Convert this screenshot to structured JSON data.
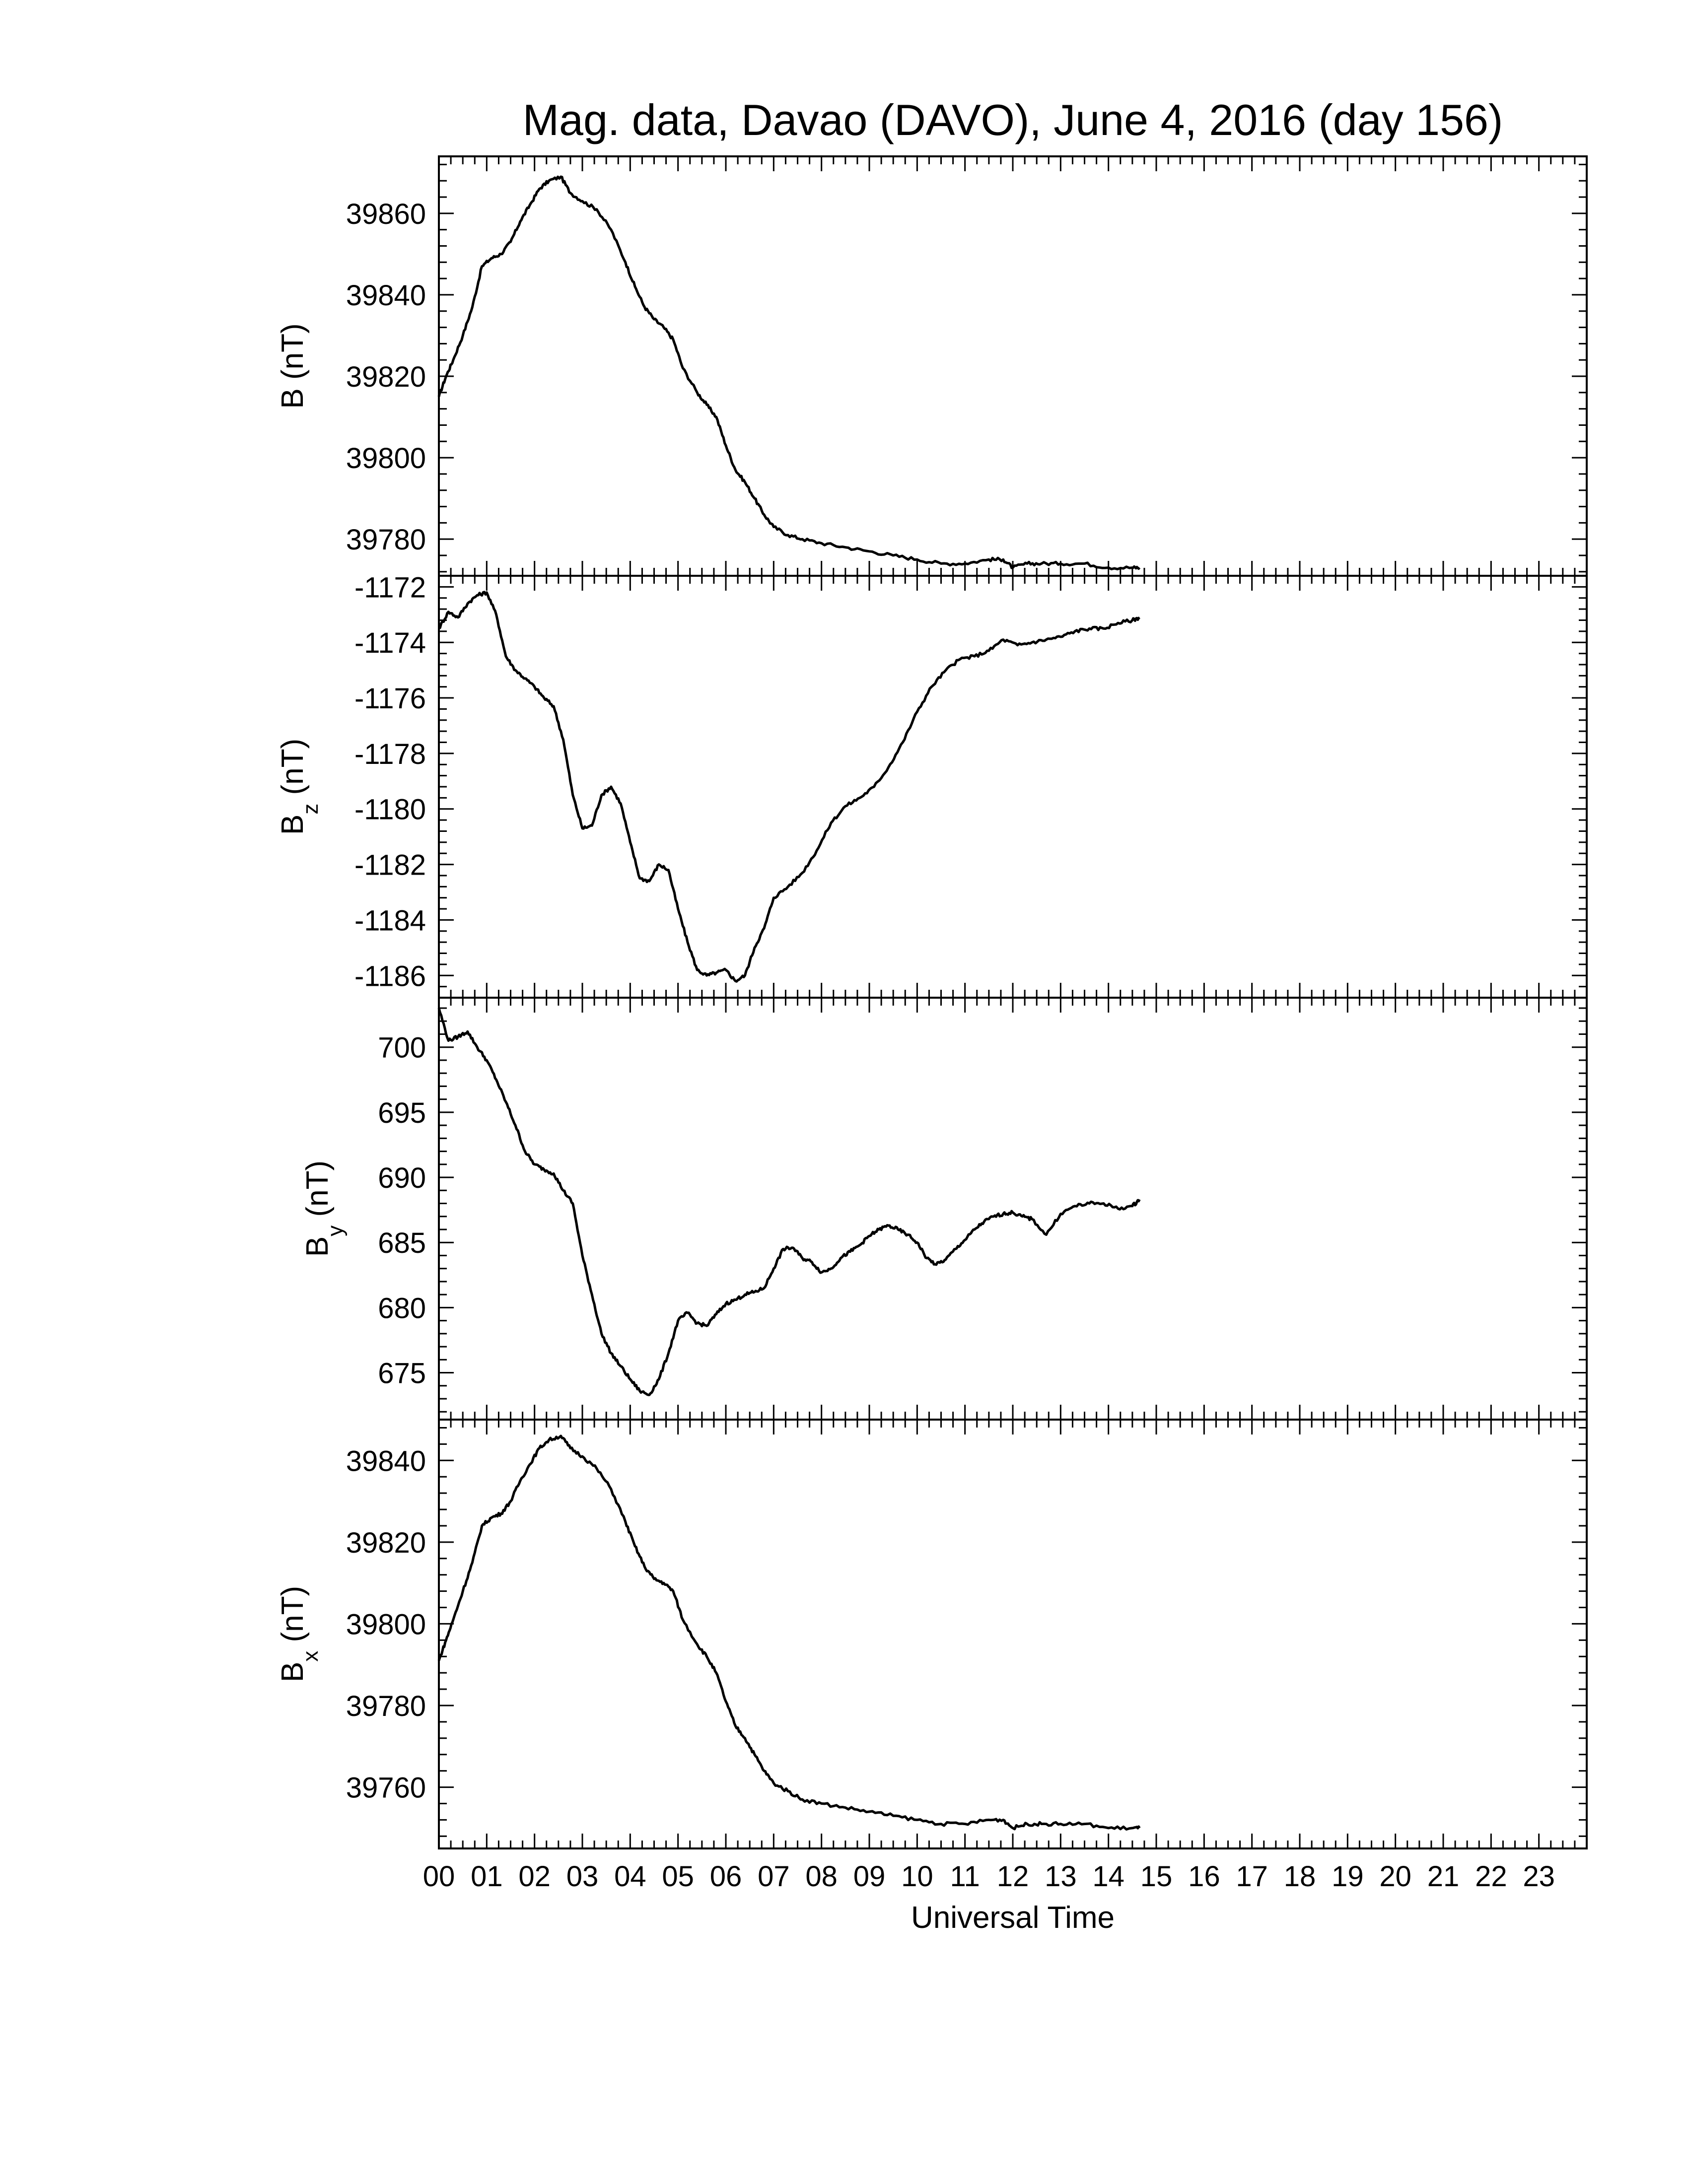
{
  "title": "Mag. data, Davao (DAVO), June 4, 2016 (day 156)",
  "xlabel": "Universal Time",
  "chart_data": [
    {
      "type": "line",
      "panel": "B",
      "ylabel": "B (nT)",
      "ylabel_parts": {
        "main": "B",
        "sub": "",
        "unit": "(nT)"
      },
      "xlim": [
        0,
        24
      ],
      "ylim": [
        39771,
        39874
      ],
      "yticks": [
        39780,
        39800,
        39820,
        39840,
        39860
      ],
      "x": [
        0.0,
        0.15,
        0.3,
        0.5,
        0.7,
        0.9,
        1.1,
        1.3,
        1.5,
        1.7,
        1.9,
        2.1,
        2.3,
        2.55,
        2.75,
        3.0,
        3.3,
        3.6,
        3.9,
        4.1,
        4.3,
        4.5,
        4.7,
        4.9,
        5.1,
        5.4,
        5.6,
        5.8,
        6.0,
        6.2,
        6.4,
        6.6,
        6.8,
        7.0,
        7.3,
        7.6,
        8.0,
        8.5,
        9.0,
        9.5,
        10.0,
        10.5,
        11.0,
        11.5,
        11.8,
        12.0,
        12.3,
        12.6,
        13.0,
        13.5,
        14.0,
        14.5,
        14.65
      ],
      "y": [
        39815,
        39820,
        39824,
        39830,
        39837,
        39847,
        39849,
        39850,
        39853,
        39858,
        39862,
        39866,
        39868,
        39869,
        39865,
        39863,
        39861,
        39856,
        39848,
        39842,
        39837,
        39834,
        39832,
        39829,
        39822,
        39816,
        39813,
        39810,
        39803,
        39797,
        39794,
        39790,
        39786,
        39783,
        39781,
        39780,
        39779,
        39778,
        39777,
        39776,
        39775,
        39774,
        39774,
        39775,
        39775,
        39773,
        39774,
        39774,
        39774,
        39774,
        39773,
        39773,
        39773
      ]
    },
    {
      "type": "line",
      "panel": "Bz",
      "ylabel": "Bz (nT)",
      "ylabel_parts": {
        "main": "B",
        "sub": "z",
        "unit": "(nT)"
      },
      "xlim": [
        0,
        24
      ],
      "ylim": [
        -1186.8,
        -1171.6
      ],
      "yticks": [
        -1186,
        -1184,
        -1182,
        -1180,
        -1178,
        -1176,
        -1174,
        -1172
      ],
      "x": [
        0.0,
        0.2,
        0.4,
        0.6,
        0.8,
        1.0,
        1.2,
        1.4,
        1.6,
        1.8,
        2.0,
        2.2,
        2.4,
        2.6,
        2.8,
        3.0,
        3.2,
        3.4,
        3.6,
        3.8,
        4.0,
        4.2,
        4.4,
        4.6,
        4.8,
        5.0,
        5.2,
        5.4,
        5.6,
        5.8,
        6.0,
        6.2,
        6.4,
        6.6,
        6.8,
        7.0,
        7.3,
        7.6,
        7.9,
        8.2,
        8.5,
        8.8,
        9.1,
        9.4,
        9.7,
        10.0,
        10.3,
        10.6,
        10.9,
        11.2,
        11.5,
        11.8,
        12.1,
        12.4,
        12.7,
        13.0,
        13.3,
        13.6,
        13.9,
        14.2,
        14.5,
        14.65
      ],
      "y": [
        -1173.5,
        -1172.9,
        -1173.1,
        -1172.6,
        -1172.3,
        -1172.2,
        -1173.0,
        -1174.5,
        -1175.0,
        -1175.3,
        -1175.6,
        -1176.0,
        -1176.3,
        -1177.5,
        -1179.5,
        -1180.7,
        -1180.6,
        -1179.5,
        -1179.2,
        -1179.8,
        -1181.2,
        -1182.5,
        -1182.6,
        -1182.0,
        -1182.2,
        -1183.6,
        -1184.8,
        -1185.8,
        -1186.0,
        -1185.9,
        -1185.8,
        -1186.2,
        -1186.0,
        -1185.0,
        -1184.3,
        -1183.2,
        -1182.8,
        -1182.3,
        -1181.5,
        -1180.5,
        -1179.9,
        -1179.6,
        -1179.2,
        -1178.5,
        -1177.6,
        -1176.5,
        -1175.6,
        -1175.0,
        -1174.6,
        -1174.5,
        -1174.3,
        -1173.9,
        -1174.1,
        -1174.0,
        -1173.9,
        -1173.8,
        -1173.6,
        -1173.5,
        -1173.5,
        -1173.3,
        -1173.2,
        -1173.1
      ]
    },
    {
      "type": "line",
      "panel": "By",
      "ylabel": "By (nT)",
      "ylabel_parts": {
        "main": "B",
        "sub": "y",
        "unit": "(nT)"
      },
      "xlim": [
        0,
        24
      ],
      "ylim": [
        671.4,
        703.8
      ],
      "yticks": [
        675,
        680,
        685,
        690,
        695,
        700
      ],
      "x": [
        0.0,
        0.2,
        0.4,
        0.6,
        0.8,
        1.0,
        1.2,
        1.4,
        1.6,
        1.8,
        2.0,
        2.2,
        2.4,
        2.6,
        2.8,
        3.0,
        3.2,
        3.4,
        3.6,
        3.8,
        4.0,
        4.2,
        4.4,
        4.6,
        4.8,
        5.0,
        5.2,
        5.4,
        5.6,
        5.8,
        6.0,
        6.2,
        6.4,
        6.6,
        6.8,
        7.0,
        7.2,
        7.4,
        7.6,
        7.8,
        8.0,
        8.2,
        8.4,
        8.6,
        8.8,
        9.0,
        9.2,
        9.4,
        9.6,
        9.8,
        10.0,
        10.2,
        10.4,
        10.6,
        10.8,
        11.0,
        11.2,
        11.4,
        11.6,
        11.8,
        12.0,
        12.2,
        12.4,
        12.7,
        13.0,
        13.3,
        13.6,
        13.9,
        14.2,
        14.5,
        14.65
      ],
      "y": [
        703.0,
        700.5,
        700.8,
        701.2,
        700.0,
        699.0,
        697.5,
        695.8,
        694.0,
        692.0,
        691.0,
        690.6,
        690.3,
        689.0,
        688.0,
        684.0,
        681.0,
        678.0,
        676.5,
        675.5,
        674.5,
        673.6,
        673.3,
        674.5,
        676.5,
        679.0,
        679.6,
        678.8,
        678.6,
        679.5,
        680.3,
        680.6,
        681.0,
        681.2,
        681.5,
        683.0,
        684.5,
        684.6,
        683.8,
        683.5,
        682.7,
        683.0,
        683.8,
        684.3,
        684.8,
        685.5,
        686.0,
        686.3,
        686.0,
        685.6,
        685.0,
        683.8,
        683.3,
        683.7,
        684.5,
        685.2,
        686.0,
        686.6,
        687.0,
        687.2,
        687.3,
        687.0,
        686.8,
        685.6,
        687.2,
        687.8,
        688.0,
        688.0,
        687.6,
        687.8,
        688.3
      ]
    },
    {
      "type": "line",
      "panel": "Bx",
      "ylabel": "Bx (nT)",
      "ylabel_parts": {
        "main": "B",
        "sub": "x",
        "unit": "(nT)"
      },
      "xlim": [
        0,
        24
      ],
      "ylim": [
        39745,
        39850
      ],
      "yticks": [
        39760,
        39780,
        39800,
        39820,
        39840
      ],
      "x": [
        0.0,
        0.15,
        0.3,
        0.5,
        0.7,
        0.9,
        1.1,
        1.3,
        1.5,
        1.7,
        1.9,
        2.1,
        2.3,
        2.55,
        2.75,
        3.0,
        3.3,
        3.6,
        3.9,
        4.1,
        4.3,
        4.5,
        4.7,
        4.9,
        5.1,
        5.4,
        5.6,
        5.8,
        6.0,
        6.2,
        6.4,
        6.6,
        6.8,
        7.0,
        7.3,
        7.6,
        8.0,
        8.5,
        9.0,
        9.5,
        10.0,
        10.5,
        11.0,
        11.5,
        11.8,
        12.0,
        12.3,
        12.6,
        13.0,
        13.5,
        14.0,
        14.5,
        14.65
      ],
      "y": [
        39791,
        39796,
        39801,
        39808,
        39815,
        39824,
        39826,
        39827,
        39830,
        39835,
        39839,
        39843,
        39845,
        39846,
        39843,
        39841,
        39838,
        39833,
        39825,
        39819,
        39814,
        39811,
        39810,
        39808,
        39801,
        39795,
        39792,
        39788,
        39781,
        39775,
        39772,
        39768,
        39764,
        39761,
        39759,
        39757,
        39756,
        39755,
        39754,
        39753,
        39752,
        39751,
        39751,
        39752,
        39752,
        39750,
        39751,
        39751,
        39751,
        39751,
        39750,
        39750,
        39750
      ]
    }
  ],
  "x_ticks": [
    "00",
    "01",
    "02",
    "03",
    "04",
    "05",
    "06",
    "07",
    "08",
    "09",
    "10",
    "11",
    "12",
    "13",
    "14",
    "15",
    "16",
    "17",
    "18",
    "19",
    "20",
    "21",
    "22",
    "23"
  ]
}
